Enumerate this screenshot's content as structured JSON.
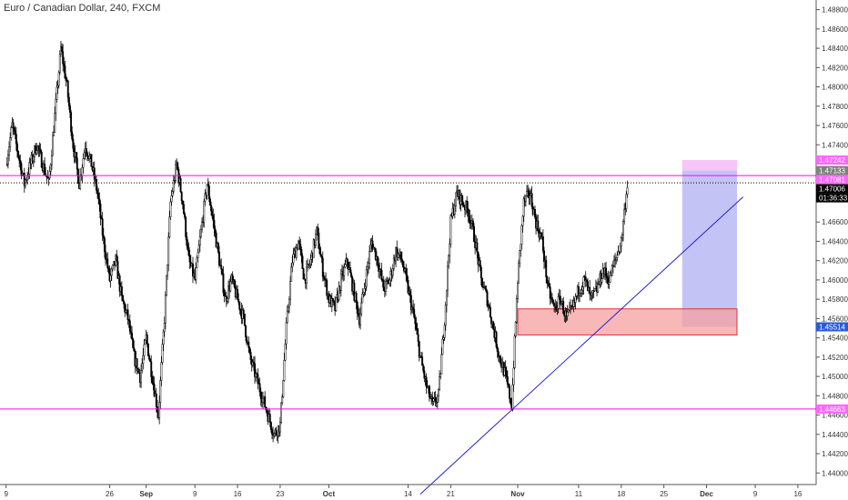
{
  "chart_data": {
    "type": "candlestick",
    "title": "Euro / Canadian Dollar, 240, FXCM",
    "ylim": [
      1.4388,
      1.489
    ],
    "y_ticks": [
      "1.48800",
      "1.48600",
      "1.48400",
      "1.48200",
      "1.48000",
      "1.47800",
      "1.47600",
      "1.47400",
      "1.46600",
      "1.46400",
      "1.46200",
      "1.46000",
      "1.45800",
      "1.45600",
      "1.45400",
      "1.45200",
      "1.45000",
      "1.44800",
      "1.44600",
      "1.44400",
      "1.44200",
      "1.44000"
    ],
    "x_ticks": [
      {
        "label": "9",
        "day": 0
      },
      {
        "label": "26",
        "day": 17
      },
      {
        "label": "Sep",
        "day": 23
      },
      {
        "label": "9",
        "day": 31
      },
      {
        "label": "16",
        "day": 38
      },
      {
        "label": "23",
        "day": 45
      },
      {
        "label": "Oct",
        "day": 53
      },
      {
        "label": "14",
        "day": 66
      },
      {
        "label": "21",
        "day": 73
      },
      {
        "label": "Nov",
        "day": 84
      },
      {
        "label": "11",
        "day": 94
      },
      {
        "label": "18",
        "day": 101
      },
      {
        "label": "25",
        "day": 108
      },
      {
        "label": "Dec",
        "day": 115
      },
      {
        "label": "9",
        "day": 123
      },
      {
        "label": "16",
        "day": 130
      }
    ],
    "x_range_days": [
      -1,
      133
    ],
    "price_path": [
      [
        0,
        1.472
      ],
      [
        1,
        1.476
      ],
      [
        3,
        1.47
      ],
      [
        5,
        1.474
      ],
      [
        7,
        1.47
      ],
      [
        8,
        1.477
      ],
      [
        9,
        1.484
      ],
      [
        10,
        1.48
      ],
      [
        11,
        1.474
      ],
      [
        12,
        1.47
      ],
      [
        13,
        1.474
      ],
      [
        14,
        1.472
      ],
      [
        15,
        1.469
      ],
      [
        16,
        1.464
      ],
      [
        17,
        1.46
      ],
      [
        18,
        1.462
      ],
      [
        19,
        1.458
      ],
      [
        20,
        1.456
      ],
      [
        21,
        1.452
      ],
      [
        22,
        1.45
      ],
      [
        23,
        1.454
      ],
      [
        24,
        1.45
      ],
      [
        25,
        1.446
      ],
      [
        26,
        1.456
      ],
      [
        27,
        1.468
      ],
      [
        28,
        1.472
      ],
      [
        29,
        1.468
      ],
      [
        30,
        1.462
      ],
      [
        31,
        1.46
      ],
      [
        32,
        1.465
      ],
      [
        33,
        1.47
      ],
      [
        34,
        1.466
      ],
      [
        35,
        1.462
      ],
      [
        36,
        1.458
      ],
      [
        37,
        1.46
      ],
      [
        38,
        1.458
      ],
      [
        39,
        1.456
      ],
      [
        40,
        1.452
      ],
      [
        41,
        1.45
      ],
      [
        42,
        1.448
      ],
      [
        43,
        1.446
      ],
      [
        44,
        1.444
      ],
      [
        45,
        1.445
      ],
      [
        46,
        1.455
      ],
      [
        47,
        1.462
      ],
      [
        48,
        1.464
      ],
      [
        49,
        1.46
      ],
      [
        50,
        1.462
      ],
      [
        51,
        1.465
      ],
      [
        52,
        1.461
      ],
      [
        53,
        1.458
      ],
      [
        54,
        1.457
      ],
      [
        55,
        1.46
      ],
      [
        56,
        1.462
      ],
      [
        57,
        1.459
      ],
      [
        58,
        1.456
      ],
      [
        59,
        1.46
      ],
      [
        60,
        1.464
      ],
      [
        61,
        1.462
      ],
      [
        62,
        1.459
      ],
      [
        63,
        1.46
      ],
      [
        64,
        1.463
      ],
      [
        65,
        1.462
      ],
      [
        66,
        1.459
      ],
      [
        67,
        1.456
      ],
      [
        68,
        1.452
      ],
      [
        69,
        1.449
      ],
      [
        70,
        1.447
      ],
      [
        71,
        1.448
      ],
      [
        72,
        1.456
      ],
      [
        73,
        1.466
      ],
      [
        74,
        1.469
      ],
      [
        75,
        1.468
      ],
      [
        76,
        1.467
      ],
      [
        77,
        1.464
      ],
      [
        78,
        1.46
      ],
      [
        79,
        1.458
      ],
      [
        80,
        1.455
      ],
      [
        81,
        1.452
      ],
      [
        82,
        1.45
      ],
      [
        83,
        1.447
      ],
      [
        84,
        1.46
      ],
      [
        85,
        1.468
      ],
      [
        86,
        1.469
      ],
      [
        87,
        1.466
      ],
      [
        88,
        1.464
      ],
      [
        89,
        1.459
      ],
      [
        90,
        1.457
      ],
      [
        91,
        1.458
      ],
      [
        92,
        1.456
      ],
      [
        93,
        1.457
      ],
      [
        94,
        1.459
      ],
      [
        95,
        1.46
      ],
      [
        96,
        1.458
      ],
      [
        97,
        1.459
      ],
      [
        98,
        1.461
      ],
      [
        99,
        1.46
      ],
      [
        100,
        1.462
      ],
      [
        101,
        1.464
      ],
      [
        102,
        1.47
      ]
    ],
    "horizontal_lines": [
      {
        "price": 1.47081,
        "color": "#ff00ff",
        "style": "solid"
      },
      {
        "price": 1.47006,
        "color": "#000000",
        "style": "dotted"
      },
      {
        "price": 1.44663,
        "color": "#ff00ff",
        "style": "solid"
      }
    ],
    "trend_line": {
      "from": {
        "day": 68,
        "price": 1.4378
      },
      "to": {
        "day": 121,
        "price": 1.4686
      },
      "color": "#2222cc"
    },
    "demand_zone": {
      "day_start": 84,
      "day_end": 120,
      "price_top": 1.457,
      "price_bottom": 1.4543,
      "fill": "#f5a0a0",
      "stroke": "#dd3333"
    },
    "position": {
      "day_start": 111,
      "day_end": 120,
      "target": {
        "price_top": 1.47242,
        "price_bottom": 1.47133,
        "fill": "#f7c6f7"
      },
      "risk": {
        "price_top": 1.47133,
        "price_bottom": 1.45514,
        "fill": "#c3c3f5"
      }
    },
    "price_tags": [
      {
        "label": "1.47242",
        "price": 1.47242,
        "bg": "#ff66ff",
        "fg": "#ffffff"
      },
      {
        "label": "1.47133",
        "price": 1.47133,
        "bg": "#808080",
        "fg": "#ffffff"
      },
      {
        "label": "1.47081",
        "price": 1.47081,
        "bg": "#ff66ff",
        "fg": "#ffffff"
      },
      {
        "label": "1.47006",
        "price": 1.47006,
        "bg": "#000000",
        "fg": "#ffffff"
      },
      {
        "label": "01:36:33",
        "price": 1.46903,
        "bg": "#000000",
        "fg": "#ffffff"
      },
      {
        "label": "1.45514",
        "price": 1.45514,
        "bg": "#2a5bd7",
        "fg": "#ffffff"
      },
      {
        "label": "1.44663",
        "price": 1.44663,
        "bg": "#ff66ff",
        "fg": "#ffffff"
      }
    ]
  }
}
